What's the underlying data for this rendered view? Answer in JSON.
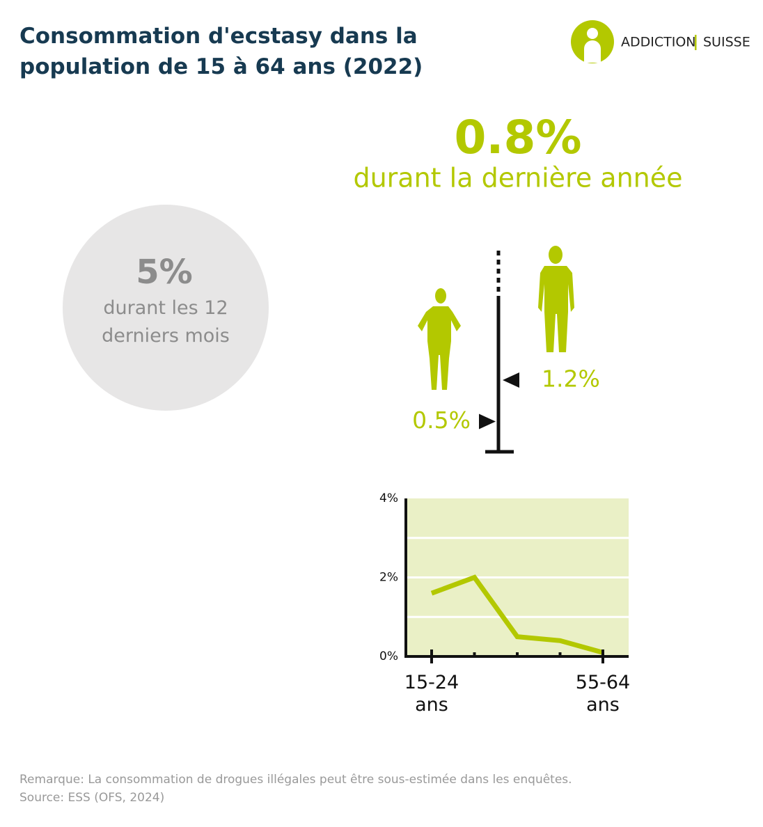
{
  "title": "Consommation d'ecstasy dans la population de 15 à 64 ans (2022)",
  "logo": {
    "left": "ADDICTION",
    "right": "SUISSE"
  },
  "headline": {
    "value": "0.8%",
    "text": "durant la dernière année"
  },
  "circle": {
    "value": "5%",
    "text": "durant les 12 derniers mois"
  },
  "gender": {
    "women": {
      "value": 0.5,
      "label": "0.5%"
    },
    "men": {
      "value": 1.2,
      "label": "1.2%"
    }
  },
  "chart_data": {
    "type": "line",
    "color": "#b3c800",
    "categories": [
      "15-24 ans",
      null,
      null,
      null,
      "55-64 ans"
    ],
    "values": [
      1.6,
      2.0,
      0.5,
      0.4,
      0.1
    ],
    "ylim": [
      0,
      4
    ],
    "yticks": [
      {
        "value": 0,
        "label": "0%"
      },
      {
        "value": 2,
        "label": "2%"
      },
      {
        "value": 4,
        "label": "4%"
      }
    ],
    "minor_yticks": [
      1,
      3
    ],
    "grid": true
  },
  "notes": [
    "Remarque: La consommation de drogues illégales peut être sous-estimée dans les enquêtes.",
    "Source: ESS (OFS, 2024)"
  ]
}
